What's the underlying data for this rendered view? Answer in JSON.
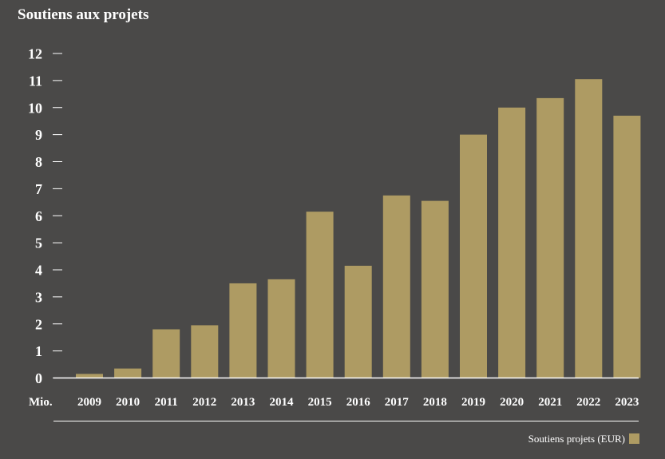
{
  "chart_data": {
    "type": "bar",
    "title": "Soutiens aux projets",
    "ylabel": "Mio.",
    "xlabel": "",
    "categories": [
      "2009",
      "2010",
      "2011",
      "2012",
      "2013",
      "2014",
      "2015",
      "2016",
      "2017",
      "2018",
      "2019",
      "2020",
      "2021",
      "2022",
      "2023"
    ],
    "series": [
      {
        "name": "Soutiens projets (EUR)",
        "values": [
          0.15,
          0.35,
          1.8,
          1.95,
          3.5,
          3.65,
          6.15,
          4.15,
          6.75,
          6.55,
          9.0,
          10.0,
          10.35,
          11.05,
          9.7
        ]
      }
    ],
    "yticks": [
      0,
      1,
      2,
      3,
      4,
      5,
      6,
      7,
      8,
      9,
      10,
      11,
      12
    ],
    "ylim": [
      0,
      12
    ],
    "grid": false,
    "legend_position": "bottom-right",
    "bar_color": "#ae9b63",
    "background_color": "#4a4948"
  }
}
